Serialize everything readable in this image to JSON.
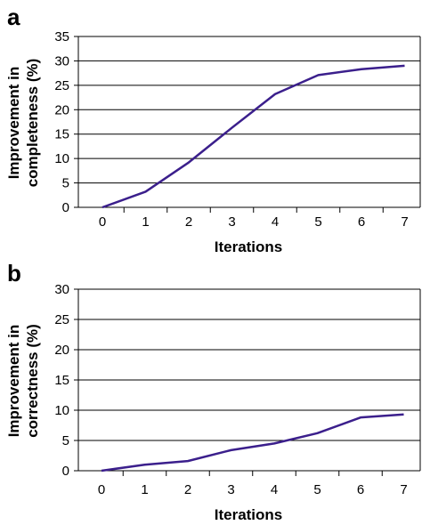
{
  "chart_data": [
    {
      "panel": "a",
      "type": "line",
      "title": "",
      "xlabel": "Iterations",
      "ylabel": "Improvement in\ncompleteness (%)",
      "x": [
        0,
        1,
        2,
        3,
        4,
        5,
        6,
        7
      ],
      "series": [
        {
          "values": [
            0,
            3.2,
            9.2,
            16.3,
            23.2,
            27.1,
            28.3,
            29.0
          ]
        }
      ],
      "ylim": [
        0,
        35
      ],
      "yticks": [
        0,
        5,
        10,
        15,
        20,
        25,
        30,
        35
      ],
      "xticks": [
        0,
        1,
        2,
        3,
        4,
        5,
        6,
        7
      ],
      "grid": "horizontal",
      "line_color": "#3b1f8c"
    },
    {
      "panel": "b",
      "type": "line",
      "title": "",
      "xlabel": "Iterations",
      "ylabel": "Improvement in\ncorrectness (%)",
      "x": [
        0,
        1,
        2,
        3,
        4,
        5,
        6,
        7
      ],
      "series": [
        {
          "values": [
            0,
            1.0,
            1.6,
            3.4,
            4.5,
            6.2,
            8.8,
            9.3
          ]
        }
      ],
      "ylim": [
        0,
        30
      ],
      "yticks": [
        0,
        5,
        10,
        15,
        20,
        25,
        30
      ],
      "xticks": [
        0,
        1,
        2,
        3,
        4,
        5,
        6,
        7
      ],
      "grid": "horizontal",
      "line_color": "#3b1f8c"
    }
  ]
}
